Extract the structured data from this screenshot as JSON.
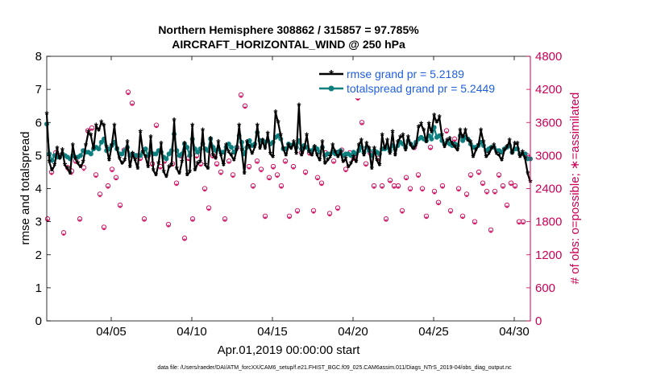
{
  "chart_data": {
    "type": "line",
    "title_line1": "Northern Hemisphere 308862 / 315857 = 97.785%",
    "title_line2": "AIRCRAFT_HORIZONTAL_WIND @ 250 hPa",
    "xlabel": "Apr.01,2019 00:00:00 start",
    "ylabel_left": "rmse and totalspread",
    "ylabel_right": "# of obs: o=possible; ∗=assimilated",
    "footnote": "data file: /Users/raeder/DAI/ATM_forcXX/CAM6_setup/f.e21.FHIST_BGC.f09_025.CAM6assim.011/Diags_NTrS_2019-04/obs_diag_output.nc",
    "xlim": [
      1,
      31
    ],
    "ylim_left": [
      0,
      8
    ],
    "ylim_right": [
      0,
      4800
    ],
    "x_ticks": [
      5,
      10,
      15,
      20,
      25,
      30
    ],
    "x_tick_labels": [
      "04/05",
      "04/10",
      "04/15",
      "04/20",
      "04/25",
      "04/30"
    ],
    "y_ticks_left": [
      "0",
      "1",
      "2",
      "3",
      "4",
      "5",
      "6",
      "7",
      "8"
    ],
    "y_ticks_right": [
      "0",
      "600",
      "1200",
      "1800",
      "2400",
      "3000",
      "3600",
      "4200",
      "4800"
    ],
    "colors": {
      "rmse": "#000000",
      "spread": "#0e7f7f",
      "obs": "#cc0055",
      "legend_text": "#1f5fe0",
      "right_axis": "#cc0055"
    },
    "series": [
      {
        "name": "rmse grand pr = 5.2189",
        "axis": "left",
        "values": [
          6.25,
          4.8,
          4.55,
          4.7,
          5.2,
          4.9,
          5.15,
          4.7,
          4.6,
          4.45,
          5.3,
          4.9,
          4.75,
          4.65,
          4.8,
          5.3,
          5.7,
          5.6,
          5.2,
          5.9,
          5.75,
          6.0,
          5.9,
          5.25,
          4.85,
          5.3,
          5.9,
          5.2,
          4.9,
          4.75,
          4.85,
          5.4,
          4.65,
          5.05,
          4.85,
          4.6,
          5.7,
          5.1,
          4.95,
          4.65,
          5.55,
          4.55,
          4.4,
          4.75,
          5.35,
          4.5,
          4.35,
          4.65,
          4.7,
          6.05,
          4.6,
          4.45,
          4.8,
          5.35,
          4.4,
          4.5,
          5.9,
          4.55,
          4.75,
          4.8,
          5.75,
          4.7,
          4.6,
          5.5,
          5.0,
          4.9,
          5.4,
          5.0,
          4.7,
          5.3,
          5.1,
          5.0,
          4.85,
          5.15,
          5.9,
          5.15,
          4.45,
          5.4,
          5.25,
          5.05,
          5.25,
          5.9,
          5.2,
          5.45,
          5.2,
          5.65,
          5.05,
          4.95,
          6.3,
          6.0,
          5.6,
          5.2,
          5.0,
          5.3,
          5.2,
          5.4,
          5.05,
          6.5,
          5.0,
          5.2,
          5.6,
          5.1,
          5.0,
          5.25,
          5.0,
          4.85,
          5.4,
          4.75,
          4.85,
          4.95,
          5.3,
          5.1,
          4.95,
          5.1,
          4.8,
          4.9,
          4.65,
          4.75,
          4.95,
          4.8,
          5.3,
          5.45,
          5.0,
          5.35,
          5.2,
          4.6,
          5.2,
          4.85,
          4.7,
          5.6,
          5.2,
          5.45,
          5.05,
          5.7,
          5.0,
          5.4,
          5.55,
          5.6,
          5.15,
          5.55,
          5.3,
          5.2,
          5.3,
          5.85,
          5.95,
          5.75,
          5.4,
          5.95,
          5.7,
          6.2,
          6.0,
          6.15,
          5.6,
          5.25,
          5.45,
          5.5,
          5.35,
          5.25,
          5.15,
          5.75,
          5.55,
          5.75,
          5.45,
          5.4,
          4.95,
          5.15,
          5.3,
          5.75,
          5.4,
          4.95,
          5.05,
          5.2,
          5.3,
          5.05,
          5.0,
          4.85,
          5.15,
          5.25,
          5.45,
          5.05,
          5.35,
          5.35,
          4.95,
          5.1,
          4.9,
          4.45,
          4.2
        ]
      },
      {
        "name": "totalspread grand pr = 5.2449",
        "axis": "left",
        "values": [
          5.95,
          5.05,
          4.85,
          5.0,
          4.95,
          4.95,
          5.05,
          5.0,
          4.95,
          4.9,
          5.0,
          4.95,
          4.95,
          5.0,
          5.15,
          5.1,
          5.1,
          5.05,
          5.2,
          5.25,
          5.2,
          5.4,
          5.5,
          5.15,
          5.2,
          5.3,
          5.4,
          5.2,
          5.05,
          5.05,
          5.15,
          5.25,
          5.0,
          5.05,
          5.0,
          5.0,
          5.0,
          5.1,
          5.2,
          5.0,
          5.1,
          5.05,
          5.05,
          5.15,
          5.1,
          4.95,
          4.9,
          5.05,
          5.15,
          5.65,
          5.15,
          5.0,
          5.05,
          5.35,
          5.25,
          5.0,
          5.5,
          5.2,
          5.1,
          5.2,
          5.35,
          5.2,
          5.15,
          5.5,
          5.25,
          5.15,
          5.2,
          5.1,
          5.1,
          5.25,
          5.35,
          5.25,
          5.1,
          5.25,
          5.6,
          5.4,
          5.05,
          5.25,
          5.45,
          5.3,
          5.35,
          5.7,
          5.45,
          5.45,
          5.4,
          5.45,
          5.35,
          5.4,
          5.55,
          5.6,
          5.5,
          5.2,
          5.2,
          5.35,
          5.3,
          5.35,
          5.25,
          5.45,
          5.2,
          5.3,
          5.25,
          5.15,
          5.15,
          5.25,
          5.2,
          5.1,
          5.25,
          5.0,
          5.05,
          5.05,
          5.1,
          5.05,
          5.1,
          5.15,
          5.0,
          5.05,
          5.05,
          5.0,
          5.1,
          5.05,
          5.15,
          5.25,
          5.1,
          5.25,
          5.15,
          5.0,
          5.15,
          5.1,
          5.05,
          5.2,
          5.2,
          5.25,
          5.15,
          5.3,
          5.2,
          5.3,
          5.4,
          5.35,
          5.25,
          5.45,
          5.35,
          5.25,
          5.4,
          5.5,
          5.55,
          5.5,
          5.45,
          5.6,
          5.5,
          5.85,
          5.55,
          5.6,
          5.45,
          5.35,
          5.4,
          5.35,
          5.3,
          5.35,
          5.3,
          5.6,
          5.45,
          5.55,
          5.5,
          5.35,
          5.25,
          5.25,
          5.3,
          5.4,
          5.3,
          5.15,
          5.2,
          5.25,
          5.25,
          5.15,
          5.15,
          5.1,
          5.2,
          5.25,
          5.3,
          5.1,
          5.2,
          5.2,
          5.05,
          5.05,
          5.05,
          4.9,
          4.9
        ]
      },
      {
        "name": "obs possible",
        "axis": "right",
        "marker": "o",
        "x": [
          1.05,
          1.3,
          1.55,
          1.8,
          2.05,
          2.3,
          2.55,
          2.8,
          3.05,
          3.3,
          3.55,
          3.8,
          4.05,
          4.3,
          4.55,
          4.8,
          5.05,
          5.3,
          5.55,
          5.8,
          6.05,
          6.3,
          6.55,
          6.8,
          7.05,
          7.3,
          7.55,
          7.8,
          8.05,
          8.3,
          8.55,
          8.8,
          9.05,
          9.3,
          9.55,
          9.8,
          10.05,
          10.3,
          10.55,
          10.8,
          11.05,
          11.3,
          11.55,
          11.8,
          12.05,
          12.3,
          12.55,
          12.8,
          13.05,
          13.3,
          13.55,
          13.8,
          14.05,
          14.3,
          14.55,
          14.8,
          15.05,
          15.3,
          15.55,
          15.8,
          16.05,
          16.3,
          16.55,
          16.8,
          17.05,
          17.3,
          17.55,
          17.8,
          18.05,
          18.3,
          18.55,
          18.8,
          19.05,
          19.3,
          19.55,
          19.8,
          20.05,
          20.3,
          20.55,
          20.8,
          21.05,
          21.3,
          21.55,
          21.8,
          22.05,
          22.3,
          22.55,
          22.8,
          23.05,
          23.3,
          23.55,
          23.8,
          24.05,
          24.3,
          24.55,
          24.8,
          25.05,
          25.3,
          25.55,
          25.8,
          26.05,
          26.3,
          26.55,
          26.8,
          27.05,
          27.3,
          27.55,
          27.8,
          28.05,
          28.3,
          28.55,
          28.8,
          29.05,
          29.3,
          29.55,
          29.8,
          30.05,
          30.3,
          30.55,
          30.8
        ],
        "values": [
          1850,
          2700,
          3050,
          3000,
          1600,
          2780,
          2720,
          2900,
          1850,
          2780,
          3450,
          3500,
          2650,
          2300,
          1700,
          2450,
          2750,
          2600,
          2100,
          3100,
          4150,
          3950,
          3000,
          2950,
          1850,
          3000,
          2850,
          3550,
          2800,
          2900,
          1750,
          2850,
          2500,
          3000,
          1500,
          2950,
          1850,
          3000,
          2850,
          2400,
          2050,
          3000,
          2850,
          2700,
          1850,
          2900,
          2650,
          3150,
          4100,
          3900,
          2800,
          2450,
          2900,
          2750,
          1900,
          2600,
          2800,
          2650,
          2450,
          2900,
          1900,
          2800,
          2000,
          3050,
          2700,
          3050,
          2000,
          2600,
          2500,
          3050,
          1950,
          2900,
          2050,
          3100,
          2750,
          3050,
          2950,
          4050,
          3600,
          2850,
          3050,
          2450,
          2950,
          2450,
          1850,
          2550,
          2450,
          2450,
          2000,
          2600,
          2400,
          3150,
          2650,
          2400,
          1900,
          3150,
          2350,
          2150,
          2450,
          3450,
          2000,
          3300,
          2400,
          1900,
          2300,
          2650,
          1800,
          2700,
          2500,
          2350,
          1650,
          2350,
          2650,
          2450,
          2100,
          2500,
          2450,
          1800,
          1800,
          3000
        ]
      },
      {
        "name": "obs assimilated",
        "axis": "right",
        "marker": "*",
        "x": [
          1.05,
          1.3,
          1.55,
          1.8,
          2.05,
          2.3,
          2.55,
          2.8,
          3.05,
          3.3,
          3.55,
          3.8,
          4.05,
          4.3,
          4.55,
          4.8,
          5.05,
          5.3,
          5.55,
          5.8,
          6.05,
          6.3,
          6.55,
          6.8,
          7.05,
          7.3,
          7.55,
          7.8,
          8.05,
          8.3,
          8.55,
          8.8,
          9.05,
          9.3,
          9.55,
          9.8,
          10.05,
          10.3,
          10.55,
          10.8,
          11.05,
          11.3,
          11.55,
          11.8,
          12.05,
          12.3,
          12.55,
          12.8,
          13.05,
          13.3,
          13.55,
          13.8,
          14.05,
          14.3,
          14.55,
          14.8,
          15.05,
          15.3,
          15.55,
          15.8,
          16.05,
          16.3,
          16.55,
          16.8,
          17.05,
          17.3,
          17.55,
          17.8,
          18.05,
          18.3,
          18.55,
          18.8,
          19.05,
          19.3,
          19.55,
          19.8,
          20.05,
          20.3,
          20.55,
          20.8,
          21.05,
          21.3,
          21.55,
          21.8,
          22.05,
          22.3,
          22.55,
          22.8,
          23.05,
          23.3,
          23.55,
          23.8,
          24.05,
          24.3,
          24.55,
          24.8,
          25.05,
          25.3,
          25.55,
          25.8,
          26.05,
          26.3,
          26.55,
          26.8,
          27.05,
          27.3,
          27.55,
          27.8,
          28.05,
          28.3,
          28.55,
          28.8,
          29.05,
          29.3,
          29.55,
          29.8,
          30.05,
          30.3,
          30.55,
          30.8
        ],
        "values": [
          1800,
          2650,
          3000,
          2950,
          1550,
          2720,
          2650,
          2850,
          1800,
          2720,
          3400,
          3450,
          2600,
          2250,
          1650,
          2400,
          2700,
          2550,
          2050,
          3050,
          4100,
          3900,
          2950,
          2900,
          1800,
          2950,
          2800,
          3500,
          2750,
          2850,
          1700,
          2800,
          2450,
          2950,
          1450,
          2900,
          1800,
          2950,
          2800,
          2350,
          2000,
          2950,
          2800,
          2650,
          1800,
          2850,
          2600,
          3100,
          4050,
          3850,
          2750,
          2400,
          2850,
          2700,
          1850,
          2550,
          2750,
          2600,
          2400,
          2850,
          1850,
          2750,
          1950,
          3000,
          2650,
          3000,
          1950,
          2550,
          2450,
          3000,
          1900,
          2850,
          2000,
          3050,
          2700,
          3000,
          2900,
          4000,
          3550,
          2800,
          3000,
          2400,
          2900,
          2400,
          1800,
          2500,
          2400,
          2400,
          1950,
          2550,
          2350,
          3100,
          2600,
          2350,
          1850,
          3100,
          2300,
          2100,
          2400,
          3400,
          1950,
          3250,
          2350,
          1850,
          2250,
          2600,
          1750,
          2650,
          2450,
          2300,
          1600,
          2300,
          2600,
          2400,
          2050,
          2450,
          2400,
          1750,
          1750,
          2950
        ]
      }
    ],
    "legend": [
      "rmse grand pr = 5.2189",
      "totalspread grand pr = 5.2449"
    ]
  }
}
